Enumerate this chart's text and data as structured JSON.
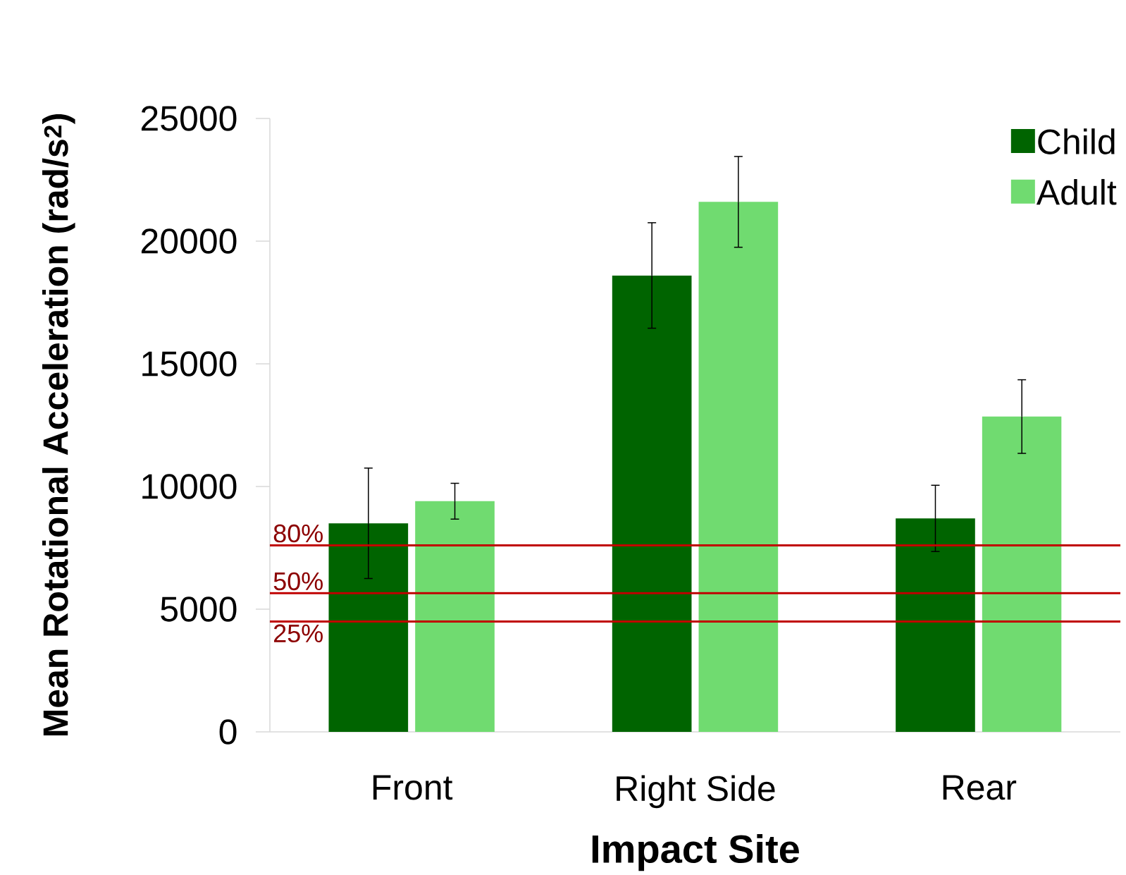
{
  "chart_data": {
    "type": "bar",
    "xlabel": "Impact Site",
    "ylabel": "Mean Rotational Acceleration (rad/s$^{2}$)",
    "categories": [
      "Front",
      "Right Side",
      "Rear"
    ],
    "series": [
      {
        "name": "Child",
        "color": "#006400",
        "values": [
          8500,
          18600,
          8700
        ],
        "errors": [
          2250,
          2150,
          1350
        ]
      },
      {
        "name": "Adult",
        "color": "#70db70",
        "values": [
          9400,
          21600,
          12850
        ],
        "errors": [
          730,
          1850,
          1500
        ]
      }
    ],
    "ylim": [
      0,
      25000
    ],
    "yticks": [
      0,
      5000,
      10000,
      15000,
      20000,
      25000
    ],
    "ref_lines": [
      {
        "axis": "y",
        "value": 7600,
        "color": "#c00000"
      },
      {
        "axis": "y",
        "value": 5650,
        "color": "#c00000"
      },
      {
        "axis": "y",
        "value": 4500,
        "color": "#c00000"
      }
    ],
    "annotations": [
      {
        "text": "80%",
        "y": 7600
      },
      {
        "text": "50%",
        "y": 5650
      },
      {
        "text": "25%",
        "y": 4500
      }
    ],
    "grid": false,
    "legend": "top right"
  }
}
